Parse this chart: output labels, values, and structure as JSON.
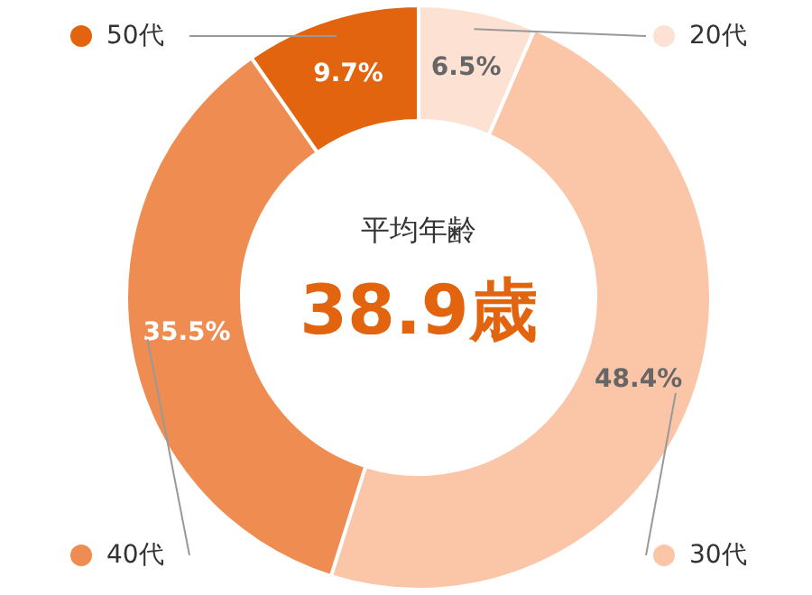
{
  "chart_data": {
    "type": "donut",
    "categories": [
      "20代",
      "30代",
      "40代",
      "50代"
    ],
    "values": [
      6.5,
      48.4,
      35.5,
      9.7
    ],
    "colors": [
      "#fde2d3",
      "#fbc5a7",
      "#ef8c52",
      "#e3640f"
    ],
    "value_labels": [
      "6.5%",
      "48.4%",
      "35.5%",
      "9.7%"
    ],
    "annotations": [
      "平均年齢",
      "38.9歳"
    ],
    "legend": true
  }
}
